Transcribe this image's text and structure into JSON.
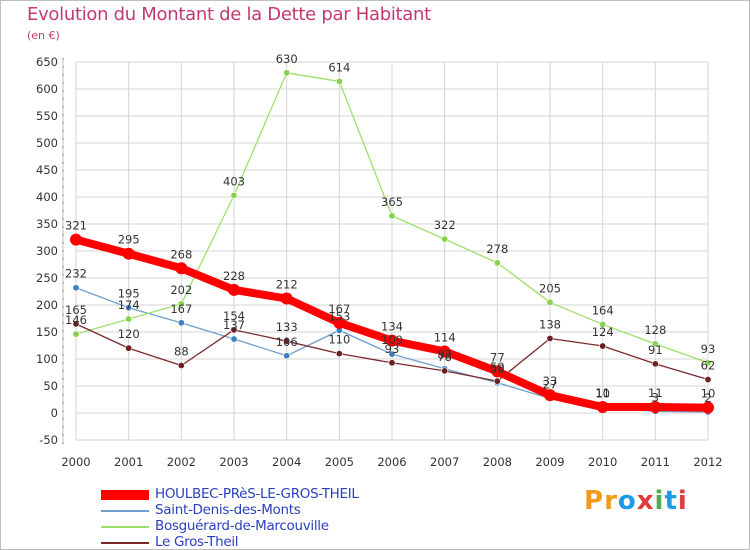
{
  "page": {
    "title": "Evolution du Montant de la Dette par Habitant",
    "unit": "(en €)"
  },
  "brand": {
    "text": "Proxiti",
    "colors": [
      "#f39a1e",
      "#f39a1e",
      "#1e9be6",
      "#e23a3a",
      "#4caf4c",
      "#1e9be6",
      "#e23a3a"
    ]
  },
  "chart_data": {
    "type": "line",
    "title": "Evolution du Montant de la Dette par Habitant",
    "subtitle": "(en €)",
    "xlabel": "",
    "ylabel": "",
    "x": [
      "2000",
      "2001",
      "2002",
      "2003",
      "2004",
      "2005",
      "2006",
      "2007",
      "2008",
      "2009",
      "2010",
      "2011",
      "2012"
    ],
    "ylim": [
      -50,
      650
    ],
    "yticks": [
      -50,
      0,
      50,
      100,
      150,
      200,
      250,
      300,
      350,
      400,
      450,
      500,
      550,
      600,
      650
    ],
    "grid": true,
    "legend_position": "bottom-left",
    "series": [
      {
        "name": "HOULBEC-PRèS-LE-GROS-THEIL",
        "color": "#ff0000",
        "marker": "#ff0000",
        "width": 8,
        "values": [
          321,
          295,
          268,
          228,
          212,
          167,
          134,
          114,
          77,
          33,
          11,
          11,
          10
        ],
        "labels": [
          "321",
          "295",
          "268",
          "228",
          "212",
          "167",
          "134",
          "114",
          "77",
          "33",
          "11",
          "11",
          "10"
        ]
      },
      {
        "name": "Saint-Denis-des-Monts",
        "color": "#6fa0cb",
        "marker": "#3d7fbf",
        "width": 1.3,
        "values": [
          232,
          195,
          167,
          137,
          106,
          153,
          109,
          82,
          56,
          27,
          10,
          3,
          2
        ],
        "labels": [
          "232",
          "195",
          "167",
          "137",
          "106",
          "153",
          "109",
          "82",
          "56",
          "27",
          "10",
          "3",
          "2"
        ]
      },
      {
        "name": "Bosguérard-de-Marcouville",
        "color": "#9ee06a",
        "marker": "#86d24e",
        "width": 1.3,
        "values": [
          146,
          174,
          202,
          403,
          630,
          614,
          365,
          322,
          278,
          205,
          164,
          128,
          93
        ],
        "labels": [
          "146",
          "174",
          "202",
          "403",
          "630",
          "614",
          "365",
          "322",
          "278",
          "205",
          "164",
          "128",
          "93"
        ]
      },
      {
        "name": "Le Gros-Theil",
        "color": "#7a2a2a",
        "marker": "#6e1f1f",
        "width": 1.3,
        "values": [
          165,
          120,
          88,
          154,
          133,
          110,
          93,
          78,
          59,
          138,
          124,
          91,
          62
        ],
        "labels": [
          "165",
          "120",
          "88",
          "154",
          "133",
          "110",
          "93",
          "78",
          "59",
          "138",
          "124",
          "91",
          "62"
        ]
      }
    ]
  }
}
